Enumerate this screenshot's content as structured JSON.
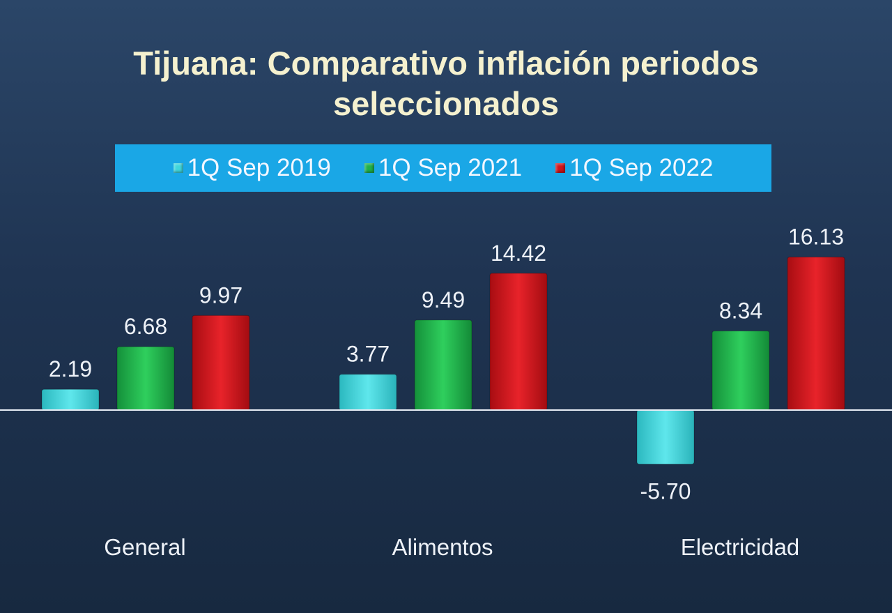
{
  "chart_data": {
    "type": "bar",
    "title": "Tijuana: Comparativo inflación periodos seleccionados",
    "title_lines": [
      "Tijuana: Comparativo inflación periodos",
      "seleccionados"
    ],
    "categories": [
      "General",
      "Alimentos",
      "Electricidad"
    ],
    "series": [
      {
        "name": "1Q Sep 2019",
        "color": "#3fd6dc",
        "values": [
          2.19,
          3.77,
          -5.7
        ],
        "labels": [
          "2.19",
          "3.77",
          "-5.70"
        ]
      },
      {
        "name": "1Q Sep 2021",
        "color": "#1fb04a",
        "values": [
          6.68,
          9.49,
          8.34
        ],
        "labels": [
          "6.68",
          "9.49",
          "8.34"
        ]
      },
      {
        "name": "1Q Sep 2022",
        "color": "#d0141a",
        "values": [
          9.97,
          14.42,
          16.13
        ],
        "labels": [
          "9.97",
          "14.42",
          "16.13"
        ]
      }
    ],
    "xlabel": "",
    "ylabel": "",
    "grid": false,
    "legend_position": "top",
    "colors": {
      "legend_background": "#1aa7e6",
      "title": "#f5f1cf",
      "axis_line": "#e8edf5"
    }
  }
}
